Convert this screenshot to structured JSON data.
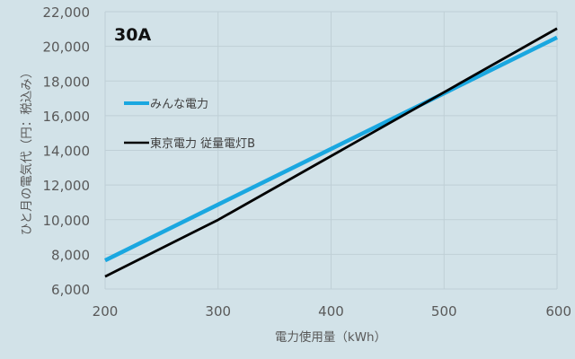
{
  "chart_data": {
    "type": "line",
    "title": "30A",
    "xlabel": "電力使用量（kWh）",
    "ylabel": "ひと月の電気代（円：税込み）",
    "x": [
      200,
      300,
      400,
      500,
      600
    ],
    "xlim": [
      200,
      600
    ],
    "ylim": [
      6000,
      22000
    ],
    "x_ticks": [
      "200",
      "300",
      "400",
      "500",
      "600"
    ],
    "y_ticks": [
      "6,000",
      "8,000",
      "10,000",
      "12,000",
      "14,000",
      "16,000",
      "18,000",
      "20,000",
      "22,000"
    ],
    "grid": true,
    "legend_position": "upper-left inside",
    "series": [
      {
        "name": "みんな電力",
        "color": "#1aa7e0",
        "values": [
          7650,
          10870,
          14080,
          17290,
          20510
        ]
      },
      {
        "name": "東京電力 従量電灯B",
        "color": "#000000",
        "values": [
          6720,
          9990,
          13670,
          17350,
          21030
        ]
      }
    ]
  },
  "colors": {
    "background": "#d2e2e8",
    "grid": "#bfcfd6",
    "text": "#595959"
  }
}
